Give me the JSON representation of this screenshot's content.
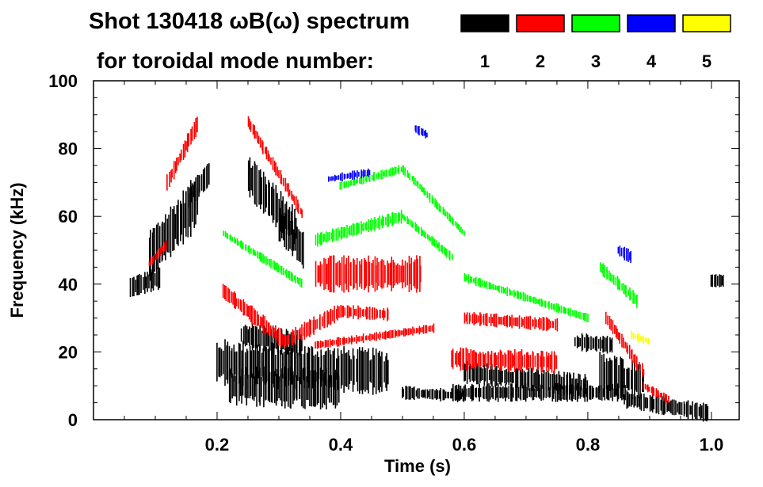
{
  "chart_data": {
    "type": "spectrogram",
    "title_line1": "Shot 130418 ωB(ω) spectrum",
    "title_line2": "for toroidal mode number:",
    "xlabel": "Time (s)",
    "ylabel": "Frequency (kHz)",
    "xlim": [
      0.0,
      1.045
    ],
    "ylim": [
      0,
      100
    ],
    "x_ticks": [
      "0.2",
      "0.4",
      "0.6",
      "0.8",
      "1.0"
    ],
    "x_tick_values": [
      0.2,
      0.4,
      0.6,
      0.8,
      1.0
    ],
    "y_ticks": [
      "0",
      "20",
      "40",
      "60",
      "80",
      "100"
    ],
    "y_tick_values": [
      0,
      20,
      40,
      60,
      80,
      100
    ],
    "legend": [
      {
        "mode": "1",
        "color": "#000000"
      },
      {
        "mode": "2",
        "color": "#ff0000"
      },
      {
        "mode": "3",
        "color": "#00ff00"
      },
      {
        "mode": "4",
        "color": "#0000ff"
      },
      {
        "mode": "5",
        "color": "#ffff00"
      }
    ],
    "series": [
      {
        "name": "n=1",
        "color": "#000000",
        "traces": [
          {
            "t0": 0.06,
            "t1": 0.11,
            "f": [
              39,
              42
            ],
            "w": 5
          },
          {
            "t0": 0.09,
            "t1": 0.17,
            "f": [
              48,
              65
            ],
            "w": 12
          },
          {
            "t0": 0.15,
            "t1": 0.19,
            "f": [
              65,
              73
            ],
            "w": 6
          },
          {
            "t0": 0.2,
            "t1": 0.48,
            "f": [
              17,
              14
            ],
            "w": 10
          },
          {
            "t0": 0.22,
            "t1": 0.4,
            "f": [
              10,
              9
            ],
            "w": 9
          },
          {
            "t0": 0.24,
            "t1": 0.34,
            "f": [
              25,
              22
            ],
            "w": 6
          },
          {
            "t0": 0.25,
            "t1": 0.33,
            "f": [
              72,
              56
            ],
            "w": 9
          },
          {
            "t0": 0.3,
            "t1": 0.34,
            "f": [
              58,
              50
            ],
            "w": 8
          },
          {
            "t0": 0.5,
            "t1": 0.6,
            "f": [
              8,
              7
            ],
            "w": 3
          },
          {
            "t0": 0.58,
            "t1": 0.86,
            "f": [
              8,
              8
            ],
            "w": 4
          },
          {
            "t0": 0.6,
            "t1": 0.8,
            "f": [
              14,
              10
            ],
            "w": 5
          },
          {
            "t0": 0.78,
            "t1": 0.84,
            "f": [
              23,
              22
            ],
            "w": 4
          },
          {
            "t0": 0.82,
            "t1": 0.89,
            "f": [
              14,
              11
            ],
            "w": 9
          },
          {
            "t0": 0.86,
            "t1": 0.995,
            "f": [
              6,
              2
            ],
            "w": 4
          },
          {
            "t0": 1.0,
            "t1": 1.02,
            "f": [
              41,
              41
            ],
            "w": 3
          }
        ]
      },
      {
        "name": "n=2",
        "color": "#ff0000",
        "traces": [
          {
            "t0": 0.09,
            "t1": 0.12,
            "f": [
              46,
              52
            ],
            "w": 2
          },
          {
            "t0": 0.12,
            "t1": 0.17,
            "f": [
              70,
              88
            ],
            "w": 4
          },
          {
            "t0": 0.21,
            "t1": 0.31,
            "f": [
              38,
              23
            ],
            "w": 4
          },
          {
            "t0": 0.31,
            "t1": 0.4,
            "f": [
              23,
              32
            ],
            "w": 4
          },
          {
            "t0": 0.4,
            "t1": 0.48,
            "f": [
              32,
              31
            ],
            "w": 3
          },
          {
            "t0": 0.36,
            "t1": 0.53,
            "f": [
              43,
              43
            ],
            "w": 8
          },
          {
            "t0": 0.25,
            "t1": 0.34,
            "f": [
              88,
              60
            ],
            "w": 3
          },
          {
            "t0": 0.36,
            "t1": 0.55,
            "f": [
              22,
              27
            ],
            "w": 2
          },
          {
            "t0": 0.58,
            "t1": 0.75,
            "f": [
              18,
              17
            ],
            "w": 5
          },
          {
            "t0": 0.6,
            "t1": 0.75,
            "f": [
              30,
              28
            ],
            "w": 3
          },
          {
            "t0": 0.83,
            "t1": 0.89,
            "f": [
              30,
              14
            ],
            "w": 3
          },
          {
            "t0": 0.89,
            "t1": 0.93,
            "f": [
              10,
              6
            ],
            "w": 2
          }
        ]
      },
      {
        "name": "n=3",
        "color": "#00ff00",
        "traces": [
          {
            "t0": 0.21,
            "t1": 0.34,
            "f": [
              55,
              40
            ],
            "w": 2
          },
          {
            "t0": 0.36,
            "t1": 0.5,
            "f": [
              53,
              60
            ],
            "w": 3
          },
          {
            "t0": 0.5,
            "t1": 0.58,
            "f": [
              60,
              48
            ],
            "w": 2
          },
          {
            "t0": 0.4,
            "t1": 0.5,
            "f": [
              69,
              74
            ],
            "w": 2
          },
          {
            "t0": 0.5,
            "t1": 0.6,
            "f": [
              74,
              55
            ],
            "w": 2
          },
          {
            "t0": 0.6,
            "t1": 0.8,
            "f": [
              42,
              30
            ],
            "w": 2
          },
          {
            "t0": 0.82,
            "t1": 0.88,
            "f": [
              45,
              35
            ],
            "w": 3
          }
        ]
      },
      {
        "name": "n=4",
        "color": "#0000ff",
        "traces": [
          {
            "t0": 0.38,
            "t1": 0.45,
            "f": [
              71,
              73
            ],
            "w": 2
          },
          {
            "t0": 0.52,
            "t1": 0.54,
            "f": [
              86,
              84
            ],
            "w": 2
          },
          {
            "t0": 0.85,
            "t1": 0.87,
            "f": [
              50,
              48
            ],
            "w": 3
          }
        ]
      },
      {
        "name": "n=5",
        "color": "#ffff00",
        "traces": [
          {
            "t0": 0.87,
            "t1": 0.9,
            "f": [
              25,
              23
            ],
            "w": 2
          }
        ]
      }
    ]
  }
}
